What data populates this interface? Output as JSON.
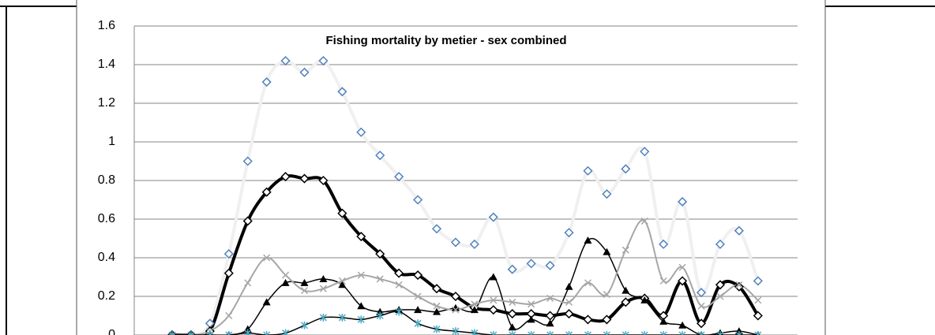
{
  "chart_data": {
    "type": "line",
    "title": "Fishing mortality by metier - sex combined",
    "categories": [
      null,
      null,
      null,
      null,
      null,
      null,
      null,
      null,
      null,
      null,
      null,
      null,
      null,
      null,
      null,
      null,
      null,
      null,
      null,
      null,
      null,
      null,
      null,
      null,
      null,
      null,
      null,
      null,
      null,
      null,
      null,
      null
    ],
    "ylim": [
      0,
      1.6
    ],
    "yticks": [
      0,
      0.2,
      0.4,
      0.6,
      0.8,
      1,
      1.2,
      1.4,
      1.6
    ],
    "grid": true,
    "smooth": true,
    "series": [
      {
        "color": "#f0f0f0",
        "marker_color": "#4f81bd",
        "marker": "diamond",
        "width": 4,
        "values": [
          0,
          0,
          0.06,
          0.42,
          0.9,
          1.31,
          1.42,
          1.36,
          1.42,
          1.26,
          1.05,
          0.93,
          0.82,
          0.7,
          0.55,
          0.48,
          0.47,
          0.61,
          0.34,
          0.37,
          0.36,
          0.53,
          0.85,
          0.73,
          0.86,
          0.95,
          0.47,
          0.69,
          0.22,
          0.47,
          0.54,
          0.28
        ]
      },
      {
        "color": "#000000",
        "marker_color": "#000000",
        "marker": "diamond",
        "width": 4,
        "values": [
          0,
          0,
          0.02,
          0.32,
          0.59,
          0.74,
          0.82,
          0.81,
          0.8,
          0.63,
          0.51,
          0.42,
          0.32,
          0.31,
          0.24,
          0.2,
          0.14,
          0.13,
          0.11,
          0.11,
          0.1,
          0.11,
          0.08,
          0.08,
          0.17,
          0.19,
          0.1,
          0.28,
          0.06,
          0.26,
          0.25,
          0.1
        ]
      },
      {
        "color": "#000000",
        "marker_color": "#000000",
        "marker": "triangle",
        "width": 1.5,
        "values": [
          0,
          0,
          0,
          0,
          0.03,
          0.17,
          0.27,
          0.27,
          0.29,
          0.26,
          0.15,
          0.12,
          0.13,
          0.13,
          0.12,
          0.14,
          0.13,
          0.3,
          0.04,
          0.08,
          0.06,
          0.25,
          0.49,
          0.43,
          0.23,
          0.18,
          0.07,
          0.05,
          0,
          0.01,
          0.02,
          0
        ]
      },
      {
        "color": "#a6a6a6",
        "marker_color": "#a6a6a6",
        "marker": "x",
        "width": 2,
        "values": [
          0,
          0,
          0.02,
          0.1,
          0.27,
          0.4,
          0.31,
          0.23,
          0.24,
          0.28,
          0.31,
          0.29,
          0.26,
          0.2,
          0.15,
          0.13,
          0.16,
          0.18,
          0.17,
          0.16,
          0.19,
          0.17,
          0.27,
          0.21,
          0.44,
          0.59,
          0.28,
          0.35,
          0.15,
          0.2,
          0.26,
          0.18
        ]
      },
      {
        "color": "#000000",
        "marker_color": "#4bacc6",
        "marker": "asterisk",
        "width": 1.5,
        "values": [
          0,
          0,
          0,
          0,
          0.01,
          0,
          0.01,
          0.05,
          0.09,
          0.09,
          0.08,
          0.1,
          0.12,
          0.06,
          0.03,
          0.02,
          0.01,
          0,
          0,
          0,
          0,
          0,
          0,
          0,
          0,
          0,
          0,
          0,
          0,
          0,
          0,
          0
        ]
      }
    ]
  }
}
